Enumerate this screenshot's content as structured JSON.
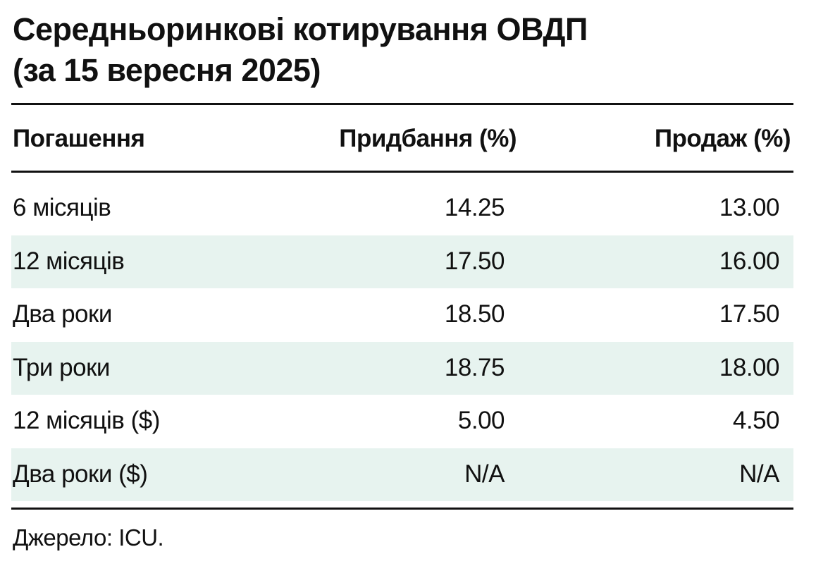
{
  "title": [
    "Середньоринкові котирування ОВДП",
    "(за 15 вересня 2025)"
  ],
  "table": {
    "header": [
      "Погашення",
      "Придбання (%)",
      "Продаж (%)"
    ],
    "rows": [
      [
        "6 місяців",
        "14.25",
        "13.00"
      ],
      [
        "12 місяців",
        "17.50",
        "16.00"
      ],
      [
        "Два роки",
        "18.50",
        "17.50"
      ],
      [
        "Три роки",
        "18.75",
        "18.00"
      ],
      [
        "12 місяців ($)",
        "5.00",
        "4.50"
      ],
      [
        "Два роки ($)",
        "N/A",
        "N/A"
      ]
    ]
  },
  "source": "Джерело: ICU."
}
